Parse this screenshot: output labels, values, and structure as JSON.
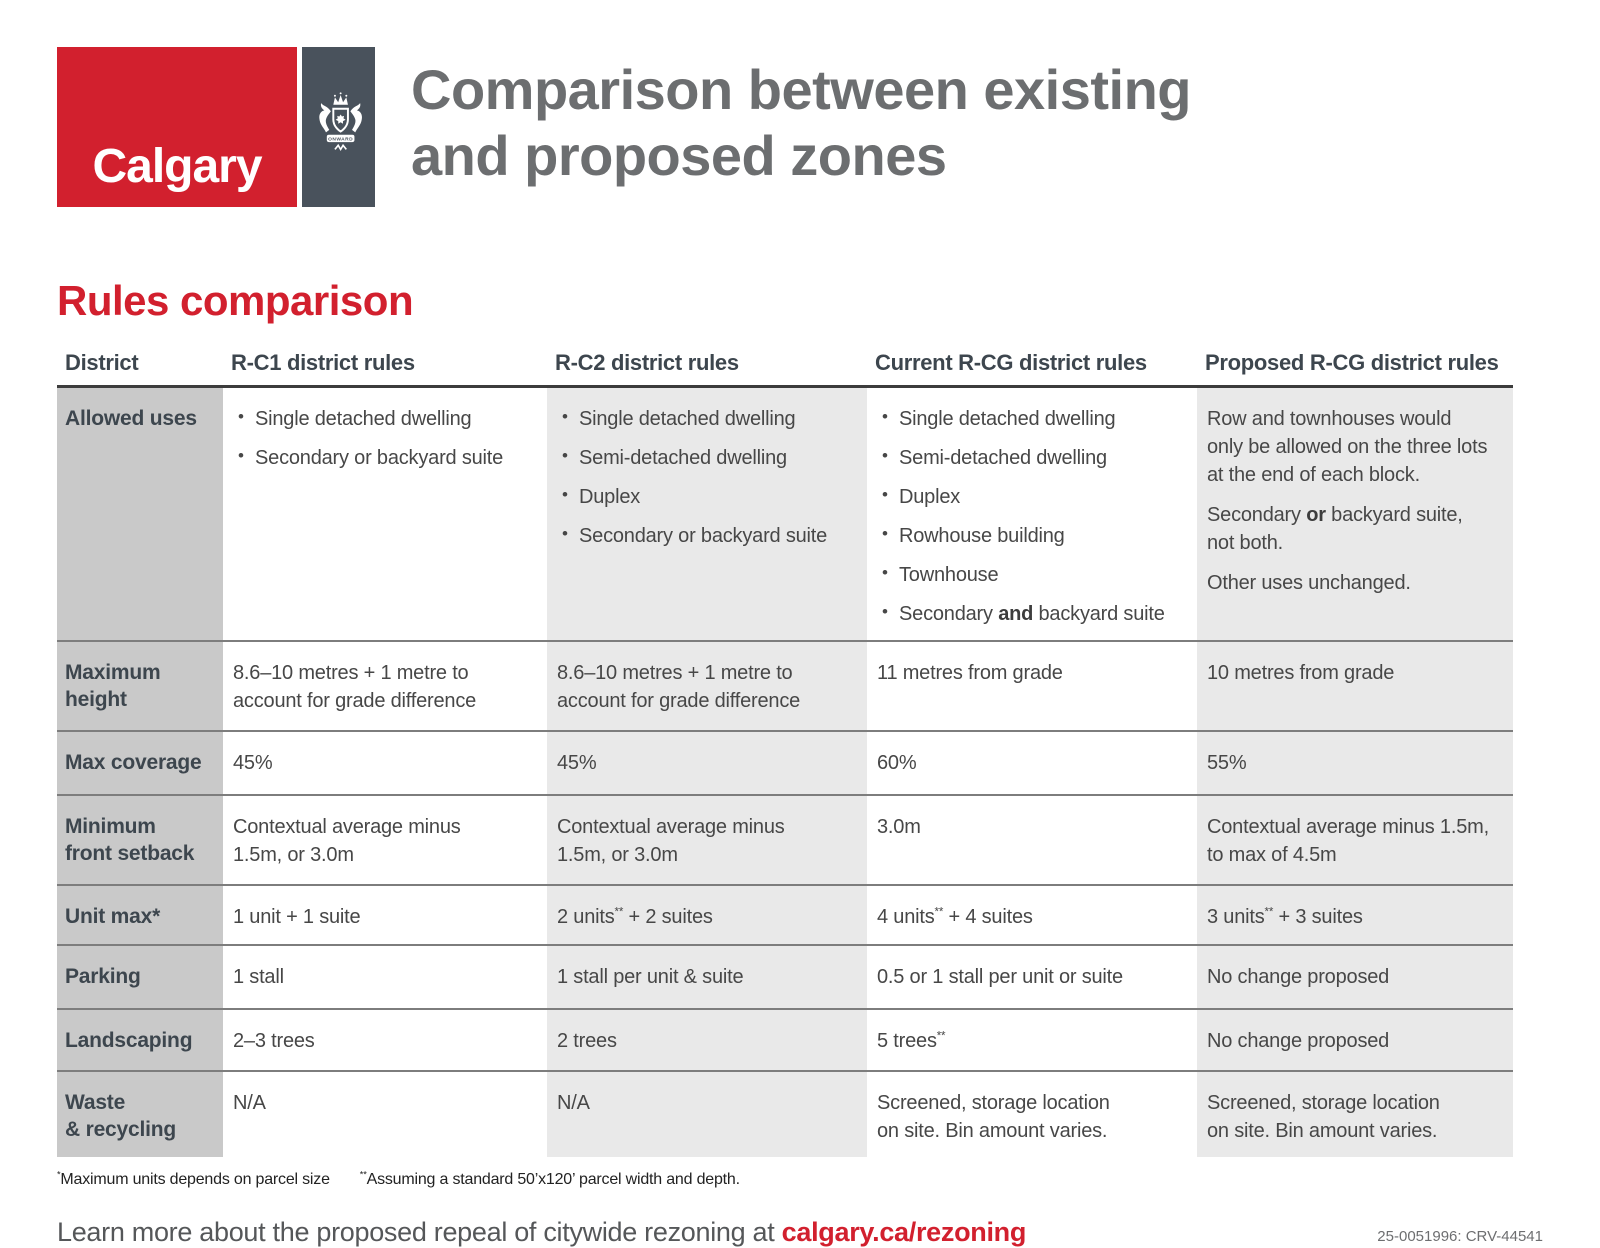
{
  "logo": {
    "wordmark": "Calgary",
    "crest_motto": "ONWARD",
    "red": "#d2202e",
    "slate": "#49525c"
  },
  "title": "Comparison between existing\nand proposed zones",
  "section_heading": "Rules comparison",
  "table": {
    "headers": [
      "District",
      "R-C1 district rules",
      "R-C2 district rules",
      "Current R-CG district rules",
      "Proposed R-CG district rules"
    ],
    "rows": [
      {
        "label": "Allowed uses",
        "cells": [
          {
            "type": "list",
            "items": [
              "Single detached dwelling",
              "Secondary or backyard suite"
            ]
          },
          {
            "type": "list",
            "items": [
              "Single detached dwelling",
              "Semi-detached dwelling",
              "Duplex",
              "Secondary or backyard suite"
            ]
          },
          {
            "type": "list",
            "items": [
              "Single detached dwelling",
              "Semi-detached dwelling",
              "Duplex",
              "Rowhouse building",
              "Townhouse",
              "Secondary {b}and{/b} backyard suite"
            ]
          },
          {
            "type": "text",
            "paragraphs": [
              "Row and townhouses would\nonly be allowed on the three lots\nat the end of each block.",
              "Secondary {b}or{/b} backyard suite,\nnot both.",
              "Other uses unchanged."
            ]
          }
        ]
      },
      {
        "label": "Maximum\nheight",
        "cells": [
          {
            "type": "text",
            "paragraphs": [
              "8.6–10 metres + 1 metre to\naccount for grade difference"
            ]
          },
          {
            "type": "text",
            "paragraphs": [
              "8.6–10 metres + 1 metre to\naccount for grade difference"
            ]
          },
          {
            "type": "text",
            "paragraphs": [
              "11 metres from grade"
            ]
          },
          {
            "type": "text",
            "paragraphs": [
              "10 metres from grade"
            ]
          }
        ]
      },
      {
        "label": "Max coverage",
        "cells": [
          {
            "type": "text",
            "paragraphs": [
              "45%"
            ]
          },
          {
            "type": "text",
            "paragraphs": [
              "45%"
            ]
          },
          {
            "type": "text",
            "paragraphs": [
              "60%"
            ]
          },
          {
            "type": "text",
            "paragraphs": [
              "55%"
            ]
          }
        ]
      },
      {
        "label": "Minimum\nfront setback",
        "cells": [
          {
            "type": "text",
            "paragraphs": [
              "Contextual average minus\n1.5m, or 3.0m"
            ]
          },
          {
            "type": "text",
            "paragraphs": [
              "Contextual average minus\n1.5m, or 3.0m"
            ]
          },
          {
            "type": "text",
            "paragraphs": [
              "3.0m"
            ]
          },
          {
            "type": "text",
            "paragraphs": [
              "Contextual average minus 1.5m,\nto max of 4.5m"
            ]
          }
        ]
      },
      {
        "label": "Unit max*",
        "cells": [
          {
            "type": "text",
            "paragraphs": [
              "1 unit + 1 suite"
            ]
          },
          {
            "type": "text",
            "paragraphs": [
              "2 units{sup}**{/sup} + 2 suites"
            ]
          },
          {
            "type": "text",
            "paragraphs": [
              "4 units{sup}**{/sup} + 4 suites"
            ]
          },
          {
            "type": "text",
            "paragraphs": [
              "3 units{sup}**{/sup} + 3 suites"
            ]
          }
        ]
      },
      {
        "label": "Parking",
        "cells": [
          {
            "type": "text",
            "paragraphs": [
              "1 stall"
            ]
          },
          {
            "type": "text",
            "paragraphs": [
              "1 stall per unit & suite"
            ]
          },
          {
            "type": "text",
            "paragraphs": [
              "0.5 or 1 stall per unit or suite"
            ]
          },
          {
            "type": "text",
            "paragraphs": [
              "No change proposed"
            ]
          }
        ]
      },
      {
        "label": "Landscaping",
        "cells": [
          {
            "type": "text",
            "paragraphs": [
              "2–3 trees"
            ]
          },
          {
            "type": "text",
            "paragraphs": [
              "2 trees"
            ]
          },
          {
            "type": "text",
            "paragraphs": [
              "5 trees{sup}**{/sup}"
            ]
          },
          {
            "type": "text",
            "paragraphs": [
              "No change proposed"
            ]
          }
        ]
      },
      {
        "label": "Waste\n& recycling",
        "cells": [
          {
            "type": "text",
            "paragraphs": [
              "N/A"
            ]
          },
          {
            "type": "text",
            "paragraphs": [
              "N/A"
            ]
          },
          {
            "type": "text",
            "paragraphs": [
              "Screened, storage location\non site. Bin amount varies."
            ]
          },
          {
            "type": "text",
            "paragraphs": [
              "Screened, storage location\non site. Bin amount varies."
            ]
          }
        ]
      }
    ]
  },
  "footnotes": [
    "{sup}*{/sup}Maximum units depends on parcel size",
    "{sup}**{/sup}Assuming a standard 50’x120’ parcel width and depth."
  ],
  "footer": {
    "learn_more_prefix": "Learn more about the proposed repeal of citywide rezoning at ",
    "learn_more_link": "calgary.ca/rezoning",
    "doc_number": "25-0051996: CRV-44541"
  }
}
